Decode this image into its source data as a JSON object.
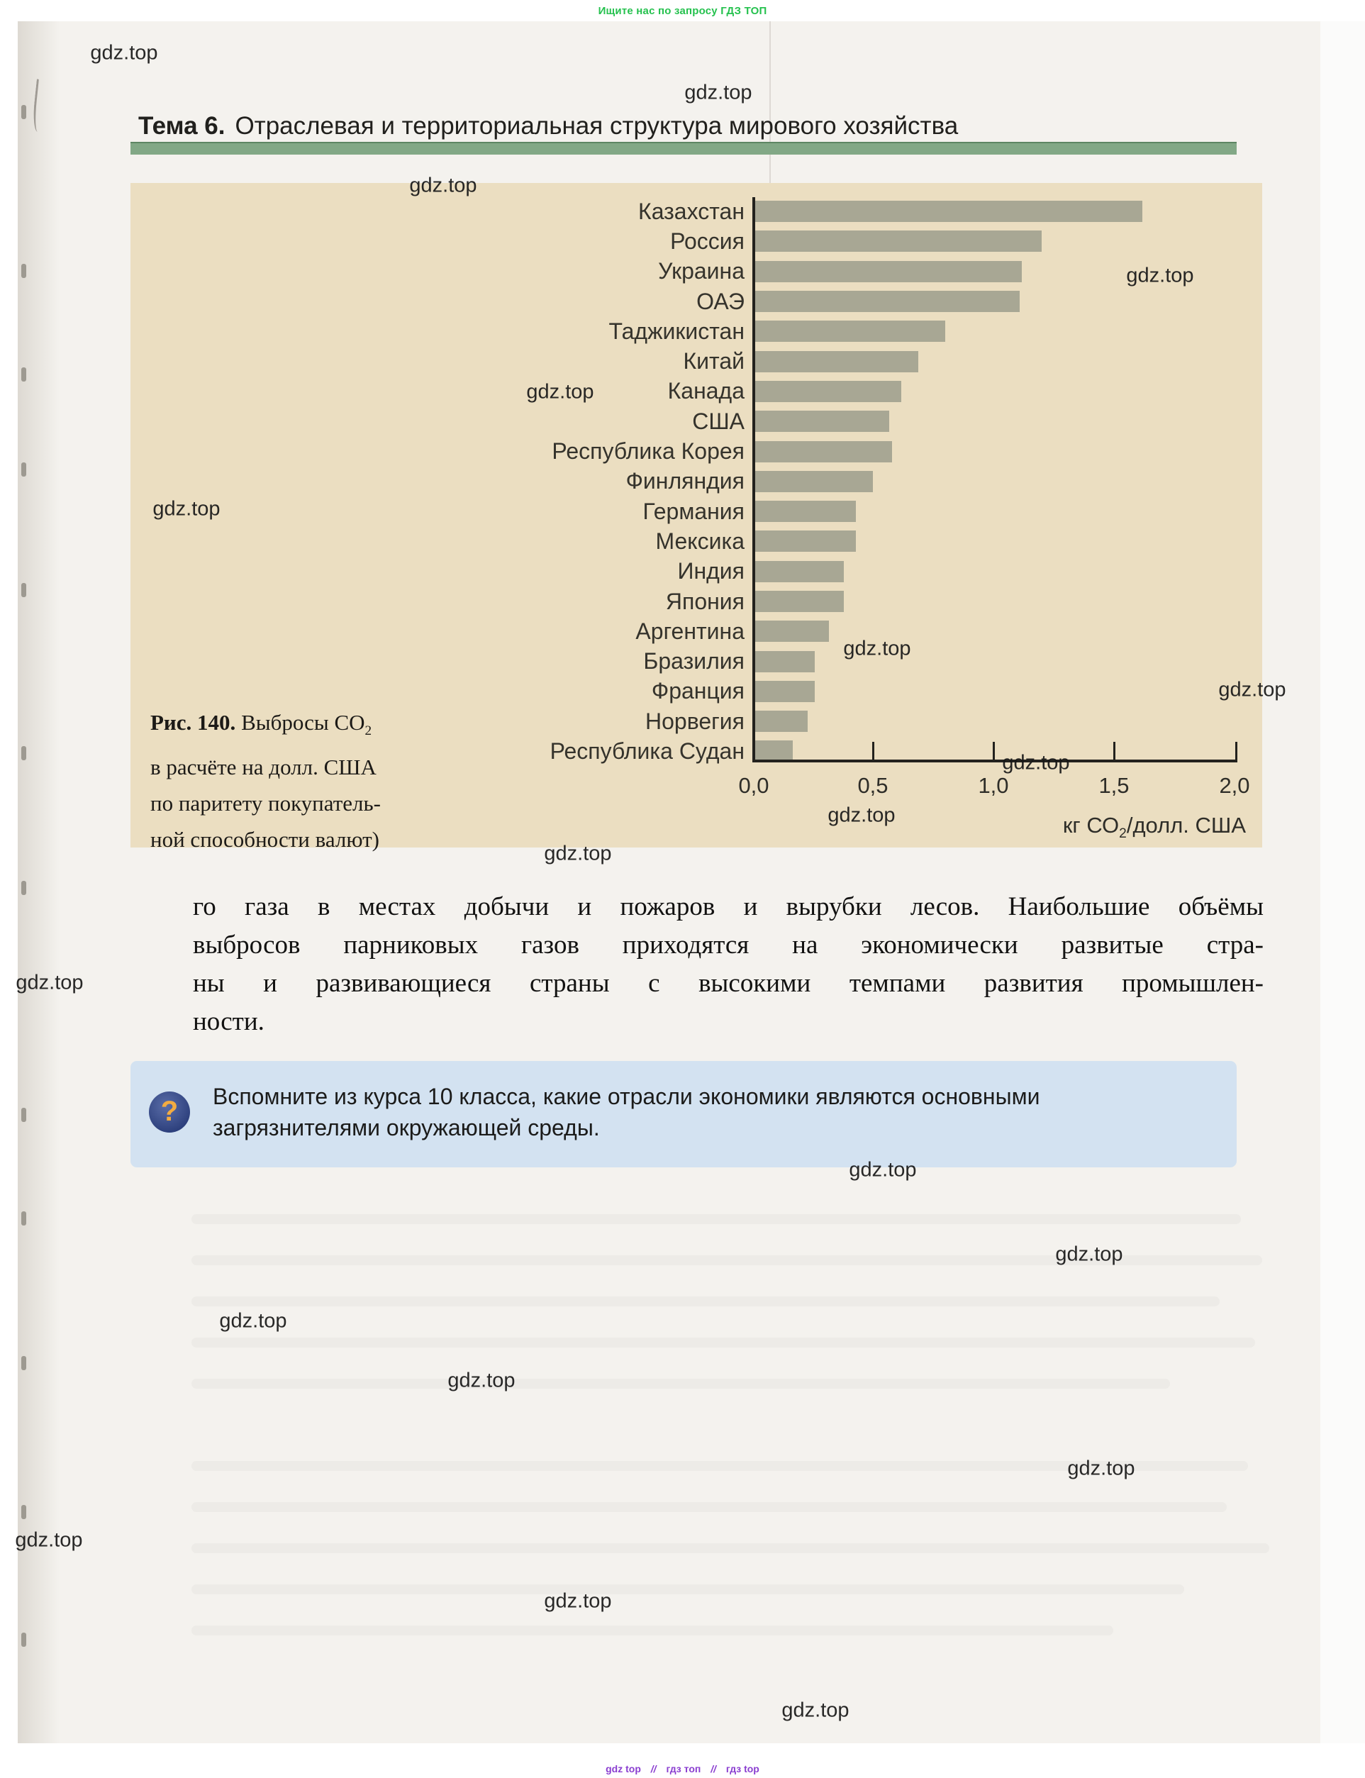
{
  "promo_banner": {
    "text": "Ищите нас по запросу ГДЗ ТОП",
    "color": "#25c14e"
  },
  "watermark": {
    "label": "gdz.top"
  },
  "header": {
    "theme_label": "Тема 6.",
    "title": "Отраслевая и территориальная структура мирового хозяйства",
    "divider_color": "#82a886"
  },
  "chart_data": {
    "type": "bar",
    "orientation": "horizontal",
    "categories": [
      "Казахстан",
      "Россия",
      "Украина",
      "ОАЭ",
      "Таджикистан",
      "Китай",
      "Канада",
      "США",
      "Республика Корея",
      "Финляндия",
      "Германия",
      "Мексика",
      "Индия",
      "Япония",
      "Аргентина",
      "Бразилия",
      "Франция",
      "Норвегия",
      "Республика Судан"
    ],
    "values": [
      1.61,
      1.19,
      1.11,
      1.1,
      0.79,
      0.68,
      0.61,
      0.56,
      0.57,
      0.49,
      0.42,
      0.42,
      0.37,
      0.37,
      0.31,
      0.25,
      0.25,
      0.22,
      0.16
    ],
    "xlim": [
      0,
      2.0
    ],
    "x_ticks": [
      "0,0",
      "0,5",
      "1,0",
      "1,5",
      "2,0"
    ],
    "xlabel_prefix": "кг СО",
    "xlabel_sub": "2",
    "xlabel_suffix": "/долл. США",
    "grid": false,
    "bar_color": "#a8a794",
    "panel_color": "#ebdec1"
  },
  "figure_caption": {
    "label_bold": "Рис. 140.",
    "line1_rest": " Выбросы СО",
    "line1_sub": "2",
    "line2": "в расчёте на долл. США",
    "line3": "по паритету покупатель-",
    "line4": "ной способности валют)"
  },
  "paragraph": {
    "lines": [
      "го газа в местах добычи и пожаров и вырубки лесов. Наибольшие объёмы",
      "выбросов парниковых газов приходятся на экономически развитые стра-",
      "ны и развивающиеся страны с высокими темпами развития промышлен-",
      "ности."
    ]
  },
  "question_box": {
    "icon_glyph": "?",
    "lines": [
      "Вспомните из курса 10 класса, какие отрасли экономики являются основными",
      "загрязнителями окружающей среды."
    ],
    "bg": "#d3e2f1"
  },
  "footer": {
    "links": [
      "gdz top",
      "гдз топ",
      "гдз top"
    ],
    "separator": "//",
    "color": "#8a3ed0"
  }
}
